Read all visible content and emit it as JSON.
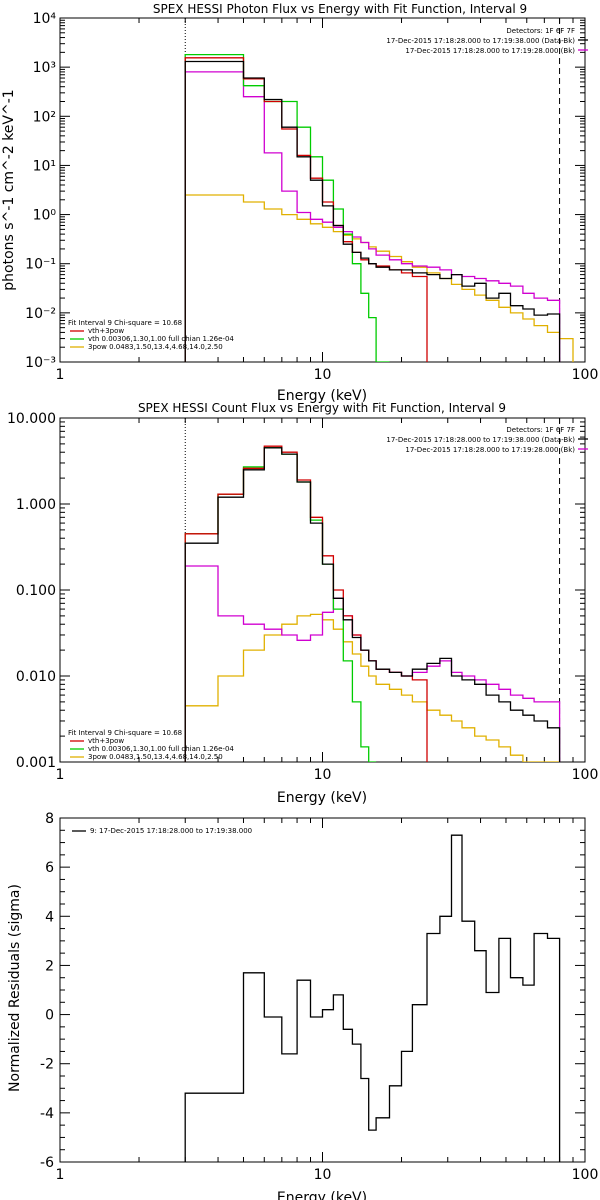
{
  "colors": {
    "total": "#000000",
    "vth_3pow": "#d00000",
    "vth": "#00cc00",
    "pow": "#e0b000",
    "bk": "#d000d0"
  },
  "chart_data": [
    {
      "type": "line",
      "title": "SPEX HESSI Photon Flux vs Energy with Fit Function, Interval 9",
      "xlabel": "Energy (keV)",
      "ylabel": "photons s^-1 cm^-2 keV^-1",
      "xscale": "log",
      "yscale": "log",
      "xlim": [
        1,
        100
      ],
      "ylim": [
        0.001,
        10000
      ],
      "grid": false,
      "x_tick_labels": [
        "1",
        "10",
        "100"
      ],
      "y_tick_labels": [
        "10^-3",
        "10^-2",
        "10^-1",
        "10^0",
        "10^1",
        "10^2",
        "10^3",
        "10^4"
      ],
      "legend_topright": [
        "Detectors: 1F 6F 7F",
        "17-Dec-2015 17:18:28.000 to 17:19:38.000 (Data-Bk)",
        "17-Dec-2015 17:18:28.000 to 17:19:28.000 (Bk)"
      ],
      "legend_bottomleft": [
        "Fit Interval 9   Chi-square = 10.68",
        "vth+3pow",
        "vth 0.00306,1.30,1.00  full chian 1.26e-04",
        "3pow 0.0483,1.50,13.4,4.68,14.0,2.50"
      ],
      "vlines": [
        {
          "x": 3.0,
          "style": "dotted"
        },
        {
          "x": 80.0,
          "style": "dashed"
        }
      ],
      "bin_edges": [
        3.0,
        4.0,
        5.0,
        6.0,
        7.0,
        8.0,
        9.0,
        10.0,
        11.0,
        12.0,
        13.0,
        14.0,
        15.0,
        16.0,
        18.0,
        20.0,
        22.0,
        25.0,
        28.0,
        31.0,
        34.0,
        38.0,
        42.0,
        47.0,
        52.0,
        58.0,
        64.0,
        72.0,
        80.0,
        90.0
      ],
      "series": [
        {
          "name": "Data-Bk",
          "color_key": "total",
          "values": [
            1300,
            1300,
            600,
            220,
            60,
            15,
            5,
            1.5,
            0.6,
            0.25,
            0.17,
            0.13,
            0.1,
            0.085,
            0.075,
            0.075,
            0.065,
            0.06,
            0.05,
            0.06,
            0.035,
            0.04,
            0.02,
            0.025,
            0.014,
            0.012,
            0.009,
            0.0095
          ]
        },
        {
          "name": "vth+3pow",
          "color_key": "vth_3pow",
          "values": [
            1550,
            1550,
            580,
            200,
            55,
            16,
            5.5,
            1.8,
            0.6,
            0.28,
            0.17,
            0.12,
            0.1,
            0.09,
            0.075,
            0.065,
            0.055
          ]
        },
        {
          "name": "vth",
          "color_key": "vth",
          "values": [
            1800,
            1800,
            420,
            200,
            200,
            60,
            15,
            5,
            1.3,
            0.4,
            0.1,
            0.025,
            0.008,
            0.001
          ]
        },
        {
          "name": "3pow",
          "color_key": "pow",
          "values": [
            2.5,
            2.5,
            1.8,
            1.3,
            1.0,
            0.8,
            0.65,
            0.55,
            0.45,
            0.38,
            0.32,
            0.27,
            0.22,
            0.18,
            0.14,
            0.11,
            0.085,
            0.065,
            0.05,
            0.038,
            0.03,
            0.023,
            0.018,
            0.013,
            0.01,
            0.0075,
            0.0055,
            0.004,
            0.003,
            0.002
          ]
        },
        {
          "name": "Bk",
          "color_key": "bk",
          "values": [
            800,
            800,
            250,
            18,
            3,
            1.1,
            0.8,
            0.7,
            0.55,
            0.45,
            0.35,
            0.27,
            0.2,
            0.15,
            0.12,
            0.1,
            0.09,
            0.085,
            0.075,
            0.06,
            0.055,
            0.05,
            0.045,
            0.04,
            0.035,
            0.025,
            0.02,
            0.018
          ]
        }
      ]
    },
    {
      "type": "line",
      "title": "SPEX HESSI Count Flux vs Energy with Fit Function, Interval 9",
      "xlabel": "Energy (keV)",
      "ylabel": "",
      "xscale": "log",
      "yscale": "log",
      "xlim": [
        1,
        100
      ],
      "ylim": [
        0.001,
        10
      ],
      "grid": false,
      "x_tick_labels": [
        "1",
        "10",
        "100"
      ],
      "y_tick_labels": [
        "0.001",
        "0.010",
        "0.100",
        "1.000",
        "10.000"
      ],
      "legend_topright": [
        "Detectors: 1F 6F 7F",
        "17-Dec-2015 17:18:28.000 to 17:19:38.000 (Data-Bk)",
        "17-Dec-2015 17:18:28.000 to 17:19:28.000 (Bk)"
      ],
      "legend_bottomleft": [
        "Fit Interval 9   Chi-square = 10.68",
        "vth+3pow",
        "vth 0.00306,1.30,1.00  full chian 1.26e-04",
        "3pow 0.0483,1.50,13.4,4.68,14.0,2.50"
      ],
      "vlines": [
        {
          "x": 3.0,
          "style": "dotted"
        },
        {
          "x": 80.0,
          "style": "dashed"
        }
      ],
      "bin_edges": [
        3.0,
        4.0,
        5.0,
        6.0,
        7.0,
        8.0,
        9.0,
        10.0,
        11.0,
        12.0,
        13.0,
        14.0,
        15.0,
        16.0,
        18.0,
        20.0,
        22.0,
        25.0,
        28.0,
        31.0,
        34.0,
        38.0,
        42.0,
        47.0,
        52.0,
        58.0,
        64.0,
        72.0,
        80.0,
        90.0
      ],
      "series": [
        {
          "name": "Data-Bk",
          "color_key": "total",
          "values": [
            0.35,
            1.2,
            2.5,
            4.5,
            3.8,
            1.8,
            0.6,
            0.2,
            0.08,
            0.045,
            0.028,
            0.02,
            0.015,
            0.012,
            0.011,
            0.01,
            0.012,
            0.014,
            0.016,
            0.01,
            0.009,
            0.008,
            0.006,
            0.005,
            0.004,
            0.0035,
            0.003,
            0.0025
          ]
        },
        {
          "name": "vth+3pow",
          "color_key": "vth_3pow",
          "values": [
            0.45,
            1.3,
            2.6,
            4.7,
            4.0,
            1.9,
            0.7,
            0.25,
            0.1,
            0.05,
            0.03,
            0.02,
            0.015,
            0.012,
            0.011,
            0.01,
            0.009
          ]
        },
        {
          "name": "vth",
          "color_key": "vth",
          "values": [
            0.45,
            1.3,
            2.7,
            4.5,
            3.8,
            1.8,
            0.65,
            0.2,
            0.06,
            0.015,
            0.005,
            0.0015,
            0.001
          ]
        },
        {
          "name": "3pow",
          "color_key": "pow",
          "values": [
            0.0045,
            0.01,
            0.02,
            0.03,
            0.04,
            0.05,
            0.052,
            0.045,
            0.035,
            0.025,
            0.018,
            0.013,
            0.01,
            0.008,
            0.007,
            0.006,
            0.005,
            0.004,
            0.0035,
            0.003,
            0.0025,
            0.002,
            0.0018,
            0.0015,
            0.0012,
            0.001,
            0.001,
            0.001
          ]
        },
        {
          "name": "Bk",
          "color_key": "bk",
          "values": [
            0.19,
            0.05,
            0.04,
            0.035,
            0.03,
            0.026,
            0.03,
            0.055,
            0.08,
            0.05,
            0.03,
            0.02,
            0.015,
            0.012,
            0.011,
            0.01,
            0.011,
            0.013,
            0.015,
            0.011,
            0.01,
            0.009,
            0.008,
            0.007,
            0.006,
            0.0055,
            0.005,
            0.005
          ]
        }
      ]
    },
    {
      "type": "line",
      "title": "",
      "xlabel": "Energy (keV)",
      "ylabel": "Normalized Residuals (sigma)",
      "xscale": "log",
      "yscale": "linear",
      "xlim": [
        1,
        100
      ],
      "ylim": [
        -6,
        8
      ],
      "grid": false,
      "x_tick_labels": [
        "1",
        "10",
        "100"
      ],
      "y_tick_labels": [
        "-6",
        "-4",
        "-2",
        "0",
        "2",
        "4",
        "6",
        "8"
      ],
      "legend_topleft": [
        "9: 17-Dec-2015 17:18:28.000 to 17:19:38.000"
      ],
      "bin_edges": [
        3.0,
        4.0,
        5.0,
        6.0,
        7.0,
        8.0,
        9.0,
        10.0,
        11.0,
        12.0,
        13.0,
        14.0,
        15.0,
        16.0,
        18.0,
        20.0,
        22.0,
        25.0,
        28.0,
        31.0,
        34.0,
        38.0,
        42.0,
        47.0,
        52.0,
        58.0,
        64.0,
        72.0,
        80.0
      ],
      "series": [
        {
          "name": "9: 17-Dec-2015 17:18:28.000 to 17:19:38.000",
          "color_key": "total",
          "values": [
            -3.2,
            -3.2,
            1.7,
            -0.1,
            -1.6,
            1.4,
            -0.1,
            0.2,
            0.8,
            -0.6,
            -1.2,
            -2.6,
            -4.7,
            -4.2,
            -2.9,
            -1.5,
            0.4,
            3.3,
            4.0,
            7.3,
            3.8,
            2.6,
            0.9,
            3.1,
            1.5,
            1.2,
            3.3,
            3.1
          ]
        }
      ]
    }
  ]
}
